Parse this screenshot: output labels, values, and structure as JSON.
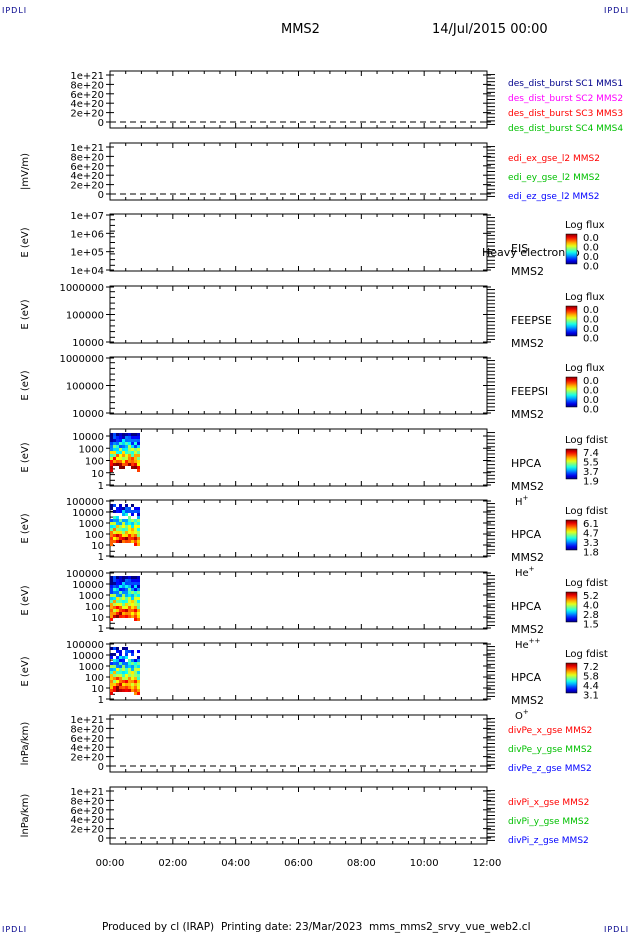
{
  "corner_label": "IPDLI",
  "header": {
    "spacecraft": "MMS2",
    "date": "14/Jul/2015 00:00"
  },
  "footer": {
    "producer": "Produced by cl (IRAP)",
    "printing": "Printing date: 23/Mar/2023",
    "file": "mms_mms2_srvy_vue_web2.cl"
  },
  "colors": {
    "red": "#ff0000",
    "green": "#00c000",
    "blue": "#0000ff",
    "magenta": "#ff00ff",
    "navy": "#00008b"
  },
  "chart_data": {
    "type": "heatmap",
    "x_range": [
      "00:00",
      "12:00"
    ],
    "x_ticks": [
      "00:00",
      "02:00",
      "04:00",
      "06:00",
      "08:00",
      "10:00",
      "12:00"
    ],
    "data_interval": [
      "00:00",
      "00:53"
    ],
    "panels": [
      {
        "id": "des_dist",
        "kind": "line",
        "ylabel": "",
        "ticks": [
          "1e+21",
          "8e+20",
          "6e+20",
          "4e+20",
          "2e+20",
          "0"
        ],
        "legend": [
          {
            "text": "des_dist_burst SC1 MMS1",
            "color": "navy"
          },
          {
            "text": "des_dist_burst SC2 MMS2",
            "color": "magenta"
          },
          {
            "text": "des_dist_burst SC3 MMS3",
            "color": "red"
          },
          {
            "text": "des_dist_burst SC4 MMS4",
            "color": "green"
          }
        ]
      },
      {
        "id": "edi",
        "kind": "line",
        "ylabel": "|mV/m)",
        "ticks": [
          "1e+21",
          "8e+20",
          "6e+20",
          "4e+20",
          "2e+20",
          "0"
        ],
        "legend": [
          {
            "text": "edi_ex_gse_l2 MMS2",
            "color": "red"
          },
          {
            "text": "edi_ey_gse_l2 MMS2",
            "color": "green"
          },
          {
            "text": "edi_ez_gse_l2 MMS2",
            "color": "blue"
          }
        ]
      },
      {
        "id": "eis",
        "kind": "spectrogram",
        "ylabel": "E (eV)",
        "ticks": [
          "1e+07",
          "1e+06",
          "1e+05",
          "1e+04"
        ],
        "right_labels": [
          "EIS",
          "MMS2"
        ],
        "overlay": "Heavy electron to",
        "cbar_title": "Log flux",
        "cbar_values": [
          "0.0",
          "0.0",
          "0.0",
          "0.0"
        ]
      },
      {
        "id": "feepse",
        "kind": "spectrogram",
        "ylabel": "E (eV)",
        "ticks": [
          "1000000",
          "100000",
          "10000"
        ],
        "right_labels": [
          "FEEPSE",
          "MMS2"
        ],
        "cbar_title": "Log flux",
        "cbar_values": [
          "0.0",
          "0.0",
          "0.0",
          "0.0"
        ]
      },
      {
        "id": "feepsi",
        "kind": "spectrogram",
        "ylabel": "E (eV)",
        "ticks": [
          "1000000",
          "100000",
          "10000"
        ],
        "right_labels": [
          "FEEPSI",
          "MMS2"
        ],
        "cbar_title": "Log flux",
        "cbar_values": [
          "0.0",
          "0.0",
          "0.0",
          "0.0"
        ]
      },
      {
        "id": "hpca_h",
        "kind": "spectrogram",
        "ylabel": "E (eV)",
        "ticks": [
          "10000",
          "1000",
          "100",
          "10",
          "1"
        ],
        "right_labels": [
          "HPCA",
          "MMS2"
        ],
        "species": "H",
        "species_sup": "+",
        "cbar_title": "Log fdist",
        "cbar_values": [
          "7.4",
          "5.5",
          "3.7",
          "1.9"
        ]
      },
      {
        "id": "hpca_he",
        "kind": "spectrogram",
        "ylabel": "E (eV)",
        "ticks": [
          "100000",
          "10000",
          "1000",
          "100",
          "10",
          "1"
        ],
        "right_labels": [
          "HPCA",
          "MMS2"
        ],
        "species": "He",
        "species_sup": "+",
        "cbar_title": "Log fdist",
        "cbar_values": [
          "6.1",
          "4.7",
          "3.3",
          "1.8"
        ]
      },
      {
        "id": "hpca_hepp",
        "kind": "spectrogram",
        "ylabel": "E (eV)",
        "ticks": [
          "100000",
          "10000",
          "1000",
          "100",
          "10",
          "1"
        ],
        "right_labels": [
          "HPCA",
          "MMS2"
        ],
        "species": "He",
        "species_sup": "++",
        "cbar_title": "Log fdist",
        "cbar_values": [
          "5.2",
          "4.0",
          "2.8",
          "1.5"
        ]
      },
      {
        "id": "hpca_o",
        "kind": "spectrogram",
        "ylabel": "E (eV)",
        "ticks": [
          "100000",
          "10000",
          "1000",
          "100",
          "10",
          "1"
        ],
        "right_labels": [
          "HPCA",
          "MMS2"
        ],
        "species": "O",
        "species_sup": "+",
        "cbar_title": "Log fdist",
        "cbar_values": [
          "7.2",
          "5.8",
          "4.4",
          "3.1"
        ]
      },
      {
        "id": "divpe",
        "kind": "line",
        "ylabel": "lnPa/km)",
        "ticks": [
          "1e+21",
          "8e+20",
          "6e+20",
          "4e+20",
          "2e+20",
          "0"
        ],
        "legend": [
          {
            "text": "divPe_x_gse MMS2",
            "color": "red"
          },
          {
            "text": "divPe_y_gse MMS2",
            "color": "green"
          },
          {
            "text": "divPe_z_gse MMS2",
            "color": "blue"
          }
        ]
      },
      {
        "id": "divpi",
        "kind": "line",
        "ylabel": "lnPa/km)",
        "ticks": [
          "1e+21",
          "8e+20",
          "6e+20",
          "4e+20",
          "2e+20",
          "0"
        ],
        "legend": [
          {
            "text": "divPi_x_gse MMS2",
            "color": "red"
          },
          {
            "text": "divPi_y_gse MMS2",
            "color": "green"
          },
          {
            "text": "divPi_z_gse MMS2",
            "color": "blue"
          }
        ]
      }
    ]
  }
}
